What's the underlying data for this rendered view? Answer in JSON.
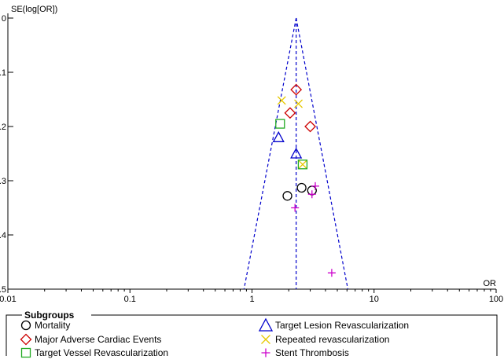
{
  "chart_data": {
    "type": "scatter",
    "subtype": "funnel-plot",
    "ylabel": "SE(log[OR])",
    "xlabel": "OR",
    "x_scale": "log",
    "xlim": [
      0.01,
      100
    ],
    "ylim": [
      0,
      0.5
    ],
    "y_inverted": true,
    "x_ticks": [
      "0.01",
      "0.1",
      "1",
      "10",
      "100"
    ],
    "x_tick_values": [
      0.01,
      0.1,
      1,
      10,
      100
    ],
    "y_ticks": [
      "0",
      "0.1",
      "0.2",
      "0.3",
      "0.4",
      "0.5"
    ],
    "y_tick_values": [
      0,
      0.1,
      0.2,
      0.3,
      0.4,
      0.5
    ],
    "pooled_or": 2.3,
    "funnel": {
      "apex": [
        2.3,
        0
      ],
      "lower_left": [
        0.86,
        0.5
      ],
      "lower_right": [
        6.1,
        0.5
      ],
      "color": "#0000cc"
    },
    "legend_title": "Subgroups",
    "series": [
      {
        "name": "Mortality",
        "marker": "circle",
        "color": "#000000",
        "points": [
          [
            2.55,
            0.313
          ],
          [
            3.1,
            0.318
          ],
          [
            1.95,
            0.328
          ]
        ]
      },
      {
        "name": "Target Lesion Revascularization",
        "marker": "triangle",
        "color": "#0000cc",
        "points": [
          [
            2.3,
            0.25
          ],
          [
            1.65,
            0.22
          ]
        ]
      },
      {
        "name": "Major Adverse Cardiac Events",
        "marker": "diamond",
        "color": "#cc0000",
        "points": [
          [
            2.3,
            0.132
          ],
          [
            2.05,
            0.175
          ],
          [
            3.0,
            0.2
          ]
        ]
      },
      {
        "name": "Repeated revascularization",
        "marker": "x",
        "color": "#e6c800",
        "points": [
          [
            1.75,
            0.152
          ],
          [
            2.4,
            0.158
          ],
          [
            2.6,
            0.27
          ]
        ]
      },
      {
        "name": "Target Vessel Revascularization",
        "marker": "square",
        "color": "#22aa22",
        "points": [
          [
            1.7,
            0.195
          ],
          [
            2.6,
            0.27
          ]
        ]
      },
      {
        "name": "Stent Thrombosis",
        "marker": "plus",
        "color": "#cc00cc",
        "points": [
          [
            3.3,
            0.31
          ],
          [
            3.1,
            0.325
          ],
          [
            2.25,
            0.35
          ],
          [
            4.5,
            0.47
          ]
        ]
      }
    ]
  }
}
